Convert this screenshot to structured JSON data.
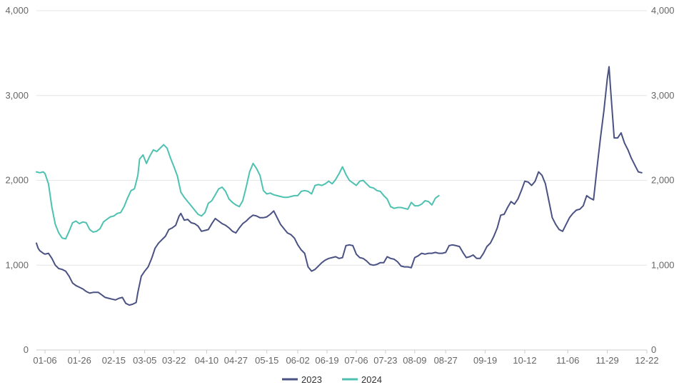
{
  "colors": {
    "series_2023": "#4a5283",
    "series_2024": "#4ec1b1",
    "grid": "#e6e6e6",
    "text": "#666666"
  },
  "chart_data": {
    "type": "line",
    "title": "",
    "xlabel": "",
    "ylabel": "",
    "x_ticks": [
      "01-06",
      "01-26",
      "02-15",
      "03-05",
      "03-22",
      "04-10",
      "04-27",
      "05-15",
      "06-02",
      "06-19",
      "07-06",
      "07-23",
      "08-09",
      "08-27",
      "09-19",
      "10-12",
      "11-06",
      "11-29",
      "12-22"
    ],
    "y_ticks": [
      "0",
      "1,000",
      "2,000",
      "3,000",
      "4,000"
    ],
    "y2_ticks": [
      "0",
      "1,000",
      "2,000",
      "3,000",
      "4,000"
    ],
    "ylim": [
      0,
      4000
    ],
    "grid": true,
    "legend_position": "bottom",
    "series": [
      {
        "name": "2023",
        "color": "#4a5283",
        "points": [
          [
            "01-01",
            1260
          ],
          [
            "01-02",
            1200
          ],
          [
            "01-03",
            1170
          ],
          [
            "01-05",
            1140
          ],
          [
            "01-06",
            1130
          ],
          [
            "01-08",
            1140
          ],
          [
            "01-10",
            1080
          ],
          [
            "01-12",
            1000
          ],
          [
            "01-14",
            960
          ],
          [
            "01-16",
            950
          ],
          [
            "01-18",
            930
          ],
          [
            "01-20",
            870
          ],
          [
            "01-22",
            790
          ],
          [
            "01-24",
            760
          ],
          [
            "01-26",
            740
          ],
          [
            "01-28",
            720
          ],
          [
            "01-30",
            690
          ],
          [
            "02-01",
            670
          ],
          [
            "02-03",
            680
          ],
          [
            "02-06",
            680
          ],
          [
            "02-08",
            650
          ],
          [
            "02-10",
            620
          ],
          [
            "02-12",
            610
          ],
          [
            "02-14",
            600
          ],
          [
            "02-16",
            590
          ],
          [
            "02-18",
            610
          ],
          [
            "02-20",
            620
          ],
          [
            "02-22",
            550
          ],
          [
            "02-24",
            530
          ],
          [
            "02-26",
            540
          ],
          [
            "02-28",
            560
          ],
          [
            "03-01",
            680
          ],
          [
            "03-03",
            870
          ],
          [
            "03-05",
            930
          ],
          [
            "03-07",
            980
          ],
          [
            "03-09",
            1080
          ],
          [
            "03-11",
            1200
          ],
          [
            "03-13",
            1260
          ],
          [
            "03-15",
            1300
          ],
          [
            "03-17",
            1340
          ],
          [
            "03-19",
            1420
          ],
          [
            "03-21",
            1440
          ],
          [
            "03-23",
            1470
          ],
          [
            "03-25",
            1580
          ],
          [
            "03-26",
            1610
          ],
          [
            "03-28",
            1530
          ],
          [
            "03-30",
            1540
          ],
          [
            "04-01",
            1500
          ],
          [
            "04-03",
            1490
          ],
          [
            "04-05",
            1460
          ],
          [
            "04-07",
            1400
          ],
          [
            "04-09",
            1410
          ],
          [
            "04-11",
            1420
          ],
          [
            "04-13",
            1490
          ],
          [
            "04-15",
            1550
          ],
          [
            "04-17",
            1520
          ],
          [
            "04-19",
            1490
          ],
          [
            "04-21",
            1470
          ],
          [
            "04-23",
            1440
          ],
          [
            "04-25",
            1400
          ],
          [
            "04-27",
            1380
          ],
          [
            "04-29",
            1440
          ],
          [
            "05-01",
            1490
          ],
          [
            "05-03",
            1520
          ],
          [
            "05-05",
            1560
          ],
          [
            "05-07",
            1590
          ],
          [
            "05-09",
            1580
          ],
          [
            "05-11",
            1560
          ],
          [
            "05-13",
            1560
          ],
          [
            "05-15",
            1570
          ],
          [
            "05-17",
            1600
          ],
          [
            "05-19",
            1640
          ],
          [
            "05-21",
            1560
          ],
          [
            "05-23",
            1480
          ],
          [
            "05-25",
            1430
          ],
          [
            "05-27",
            1380
          ],
          [
            "05-29",
            1360
          ],
          [
            "05-31",
            1320
          ],
          [
            "06-02",
            1240
          ],
          [
            "06-04",
            1180
          ],
          [
            "06-06",
            1140
          ],
          [
            "06-08",
            980
          ],
          [
            "06-10",
            930
          ],
          [
            "06-12",
            950
          ],
          [
            "06-14",
            990
          ],
          [
            "06-16",
            1030
          ],
          [
            "06-18",
            1060
          ],
          [
            "06-20",
            1080
          ],
          [
            "06-22",
            1090
          ],
          [
            "06-24",
            1100
          ],
          [
            "06-26",
            1080
          ],
          [
            "06-28",
            1090
          ],
          [
            "06-30",
            1230
          ],
          [
            "07-02",
            1240
          ],
          [
            "07-04",
            1230
          ],
          [
            "07-06",
            1130
          ],
          [
            "07-08",
            1090
          ],
          [
            "07-10",
            1080
          ],
          [
            "07-12",
            1050
          ],
          [
            "07-14",
            1010
          ],
          [
            "07-16",
            1000
          ],
          [
            "07-18",
            1010
          ],
          [
            "07-20",
            1030
          ],
          [
            "07-22",
            1030
          ],
          [
            "07-24",
            1100
          ],
          [
            "07-26",
            1080
          ],
          [
            "07-28",
            1070
          ],
          [
            "07-30",
            1040
          ],
          [
            "08-01",
            990
          ],
          [
            "08-03",
            980
          ],
          [
            "08-05",
            980
          ],
          [
            "08-07",
            970
          ],
          [
            "08-09",
            1090
          ],
          [
            "08-11",
            1110
          ],
          [
            "08-13",
            1140
          ],
          [
            "08-15",
            1130
          ],
          [
            "08-17",
            1140
          ],
          [
            "08-19",
            1140
          ],
          [
            "08-21",
            1150
          ],
          [
            "08-23",
            1140
          ],
          [
            "08-25",
            1140
          ],
          [
            "08-27",
            1150
          ],
          [
            "08-29",
            1230
          ],
          [
            "08-31",
            1240
          ],
          [
            "09-02",
            1230
          ],
          [
            "09-04",
            1220
          ],
          [
            "09-06",
            1150
          ],
          [
            "09-08",
            1090
          ],
          [
            "09-10",
            1100
          ],
          [
            "09-12",
            1120
          ],
          [
            "09-14",
            1080
          ],
          [
            "09-16",
            1080
          ],
          [
            "09-18",
            1140
          ],
          [
            "09-20",
            1220
          ],
          [
            "09-22",
            1260
          ],
          [
            "09-24",
            1340
          ],
          [
            "09-26",
            1440
          ],
          [
            "09-28",
            1590
          ],
          [
            "09-30",
            1600
          ],
          [
            "10-02",
            1680
          ],
          [
            "10-04",
            1750
          ],
          [
            "10-06",
            1720
          ],
          [
            "10-08",
            1780
          ],
          [
            "10-10",
            1880
          ],
          [
            "10-12",
            1990
          ],
          [
            "10-14",
            1980
          ],
          [
            "10-16",
            1940
          ],
          [
            "10-18",
            1990
          ],
          [
            "10-20",
            2100
          ],
          [
            "10-22",
            2060
          ],
          [
            "10-24",
            1960
          ],
          [
            "10-26",
            1760
          ],
          [
            "10-28",
            1560
          ],
          [
            "10-30",
            1480
          ],
          [
            "11-01",
            1420
          ],
          [
            "11-03",
            1400
          ],
          [
            "11-05",
            1480
          ],
          [
            "11-07",
            1560
          ],
          [
            "11-09",
            1610
          ],
          [
            "11-11",
            1650
          ],
          [
            "11-13",
            1660
          ],
          [
            "11-15",
            1700
          ],
          [
            "11-17",
            1820
          ],
          [
            "11-19",
            1790
          ],
          [
            "11-21",
            1770
          ],
          [
            "11-23",
            2150
          ],
          [
            "11-25",
            2500
          ],
          [
            "11-27",
            2820
          ],
          [
            "11-29",
            3200
          ],
          [
            "11-30",
            3340
          ],
          [
            "12-01",
            3050
          ],
          [
            "12-03",
            2500
          ],
          [
            "12-05",
            2500
          ],
          [
            "12-07",
            2560
          ],
          [
            "12-09",
            2440
          ],
          [
            "12-11",
            2360
          ],
          [
            "12-13",
            2260
          ],
          [
            "12-15",
            2180
          ],
          [
            "12-17",
            2100
          ],
          [
            "12-19",
            2090
          ]
        ]
      },
      {
        "name": "2024",
        "color": "#4ec1b1",
        "points": [
          [
            "01-01",
            2100
          ],
          [
            "01-03",
            2090
          ],
          [
            "01-05",
            2100
          ],
          [
            "01-06",
            2080
          ],
          [
            "01-08",
            1960
          ],
          [
            "01-10",
            1680
          ],
          [
            "01-12",
            1480
          ],
          [
            "01-14",
            1380
          ],
          [
            "01-16",
            1320
          ],
          [
            "01-18",
            1310
          ],
          [
            "01-20",
            1400
          ],
          [
            "01-22",
            1500
          ],
          [
            "01-24",
            1520
          ],
          [
            "01-26",
            1490
          ],
          [
            "01-28",
            1510
          ],
          [
            "01-30",
            1500
          ],
          [
            "02-01",
            1420
          ],
          [
            "02-03",
            1390
          ],
          [
            "02-05",
            1400
          ],
          [
            "02-07",
            1430
          ],
          [
            "02-09",
            1510
          ],
          [
            "02-11",
            1540
          ],
          [
            "02-13",
            1570
          ],
          [
            "02-15",
            1580
          ],
          [
            "02-17",
            1610
          ],
          [
            "02-19",
            1620
          ],
          [
            "02-21",
            1690
          ],
          [
            "02-23",
            1790
          ],
          [
            "02-25",
            1880
          ],
          [
            "02-27",
            1900
          ],
          [
            "02-29",
            2060
          ],
          [
            "03-02",
            2250
          ],
          [
            "03-04",
            2300
          ],
          [
            "03-06",
            2200
          ],
          [
            "03-08",
            2290
          ],
          [
            "03-10",
            2360
          ],
          [
            "03-12",
            2340
          ],
          [
            "03-14",
            2380
          ],
          [
            "03-16",
            2420
          ],
          [
            "03-18",
            2380
          ],
          [
            "03-20",
            2260
          ],
          [
            "03-22",
            2160
          ],
          [
            "03-24",
            2050
          ],
          [
            "03-26",
            1860
          ],
          [
            "03-28",
            1800
          ],
          [
            "03-30",
            1750
          ],
          [
            "04-01",
            1700
          ],
          [
            "04-03",
            1650
          ],
          [
            "04-05",
            1600
          ],
          [
            "04-07",
            1580
          ],
          [
            "04-09",
            1620
          ],
          [
            "04-11",
            1730
          ],
          [
            "04-13",
            1760
          ],
          [
            "04-15",
            1830
          ],
          [
            "04-17",
            1900
          ],
          [
            "04-19",
            1920
          ],
          [
            "04-21",
            1870
          ],
          [
            "04-23",
            1780
          ],
          [
            "04-25",
            1740
          ],
          [
            "04-27",
            1710
          ],
          [
            "04-29",
            1690
          ],
          [
            "05-01",
            1760
          ],
          [
            "05-03",
            1920
          ],
          [
            "05-05",
            2100
          ],
          [
            "05-07",
            2200
          ],
          [
            "05-09",
            2140
          ],
          [
            "05-11",
            2060
          ],
          [
            "05-13",
            1880
          ],
          [
            "05-15",
            1840
          ],
          [
            "05-17",
            1850
          ],
          [
            "05-19",
            1830
          ],
          [
            "05-21",
            1820
          ],
          [
            "05-23",
            1810
          ],
          [
            "05-25",
            1800
          ],
          [
            "05-27",
            1800
          ],
          [
            "05-29",
            1810
          ],
          [
            "05-31",
            1820
          ],
          [
            "06-02",
            1820
          ],
          [
            "06-04",
            1870
          ],
          [
            "06-06",
            1880
          ],
          [
            "06-08",
            1870
          ],
          [
            "06-10",
            1840
          ],
          [
            "06-12",
            1940
          ],
          [
            "06-14",
            1950
          ],
          [
            "06-16",
            1940
          ],
          [
            "06-18",
            1960
          ],
          [
            "06-20",
            1990
          ],
          [
            "06-22",
            1960
          ],
          [
            "06-24",
            2010
          ],
          [
            "06-26",
            2080
          ],
          [
            "06-28",
            2160
          ],
          [
            "06-30",
            2070
          ],
          [
            "07-02",
            2000
          ],
          [
            "07-04",
            1970
          ],
          [
            "07-06",
            1940
          ],
          [
            "07-08",
            1990
          ],
          [
            "07-10",
            2000
          ],
          [
            "07-12",
            1960
          ],
          [
            "07-14",
            1920
          ],
          [
            "07-16",
            1910
          ],
          [
            "07-18",
            1880
          ],
          [
            "07-20",
            1870
          ],
          [
            "07-22",
            1820
          ],
          [
            "07-24",
            1780
          ],
          [
            "07-26",
            1690
          ],
          [
            "07-28",
            1670
          ],
          [
            "07-30",
            1680
          ],
          [
            "08-01",
            1680
          ],
          [
            "08-03",
            1670
          ],
          [
            "08-05",
            1660
          ],
          [
            "08-07",
            1740
          ],
          [
            "08-09",
            1700
          ],
          [
            "08-11",
            1700
          ],
          [
            "08-13",
            1720
          ],
          [
            "08-15",
            1760
          ],
          [
            "08-17",
            1750
          ],
          [
            "08-19",
            1710
          ],
          [
            "08-21",
            1790
          ],
          [
            "08-23",
            1820
          ]
        ]
      }
    ]
  },
  "legend": {
    "series_1": "2023",
    "series_2": "2024"
  }
}
